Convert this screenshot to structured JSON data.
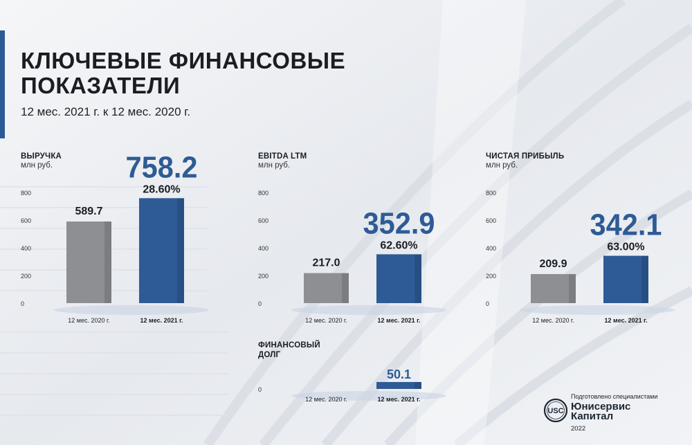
{
  "header": {
    "title_line1": "КЛЮЧЕВЫЕ ФИНАНСОВЫЕ",
    "title_line2": "ПОКАЗАТЕЛИ",
    "subtitle": "12 мес. 2021 г. к 12 мес. 2020 г."
  },
  "colors": {
    "accent": "#2c5a94",
    "bar_prev": "#8e8f92",
    "bar_curr": "#2e5b96",
    "highlight": "#2e5b96"
  },
  "chart_data": [
    {
      "type": "bar",
      "title": "ВЫРУЧКА",
      "unit": "млн руб.",
      "categories": [
        "12 мес. 2020 г.",
        "12 мес. 2021 г."
      ],
      "values": [
        589.7,
        758.2
      ],
      "value_labels": [
        "589.7",
        "758.2"
      ],
      "growth": "28.60%",
      "y_ticks": [
        "0",
        "200",
        "400",
        "600",
        "800"
      ],
      "ylim": [
        0,
        800
      ]
    },
    {
      "type": "bar",
      "title": "EBITDA LTM",
      "unit": "млн руб.",
      "categories": [
        "12 мес. 2020 г.",
        "12 мес. 2021 г."
      ],
      "values": [
        217.0,
        352.9
      ],
      "value_labels": [
        "217.0",
        "352.9"
      ],
      "growth": "62.60%",
      "y_ticks": [
        "0",
        "200",
        "400",
        "600",
        "800"
      ],
      "ylim": [
        0,
        800
      ]
    },
    {
      "type": "bar",
      "title": "ЧИСТАЯ ПРИБЫЛЬ",
      "unit": "млн руб.",
      "categories": [
        "12 мес. 2020 г.",
        "12 мес. 2021 г."
      ],
      "values": [
        209.9,
        342.1
      ],
      "value_labels": [
        "209.9",
        "342.1"
      ],
      "growth": "63.00%",
      "y_ticks": [
        "0",
        "200",
        "400",
        "600",
        "800"
      ],
      "ylim": [
        0,
        800
      ]
    },
    {
      "type": "bar",
      "title": "ФИНАНСОВЫЙ ДОЛГ",
      "title_line1": "ФИНАНСОВЫЙ",
      "title_line2": "ДОЛГ",
      "categories": [
        "12 мес. 2020 г.",
        "12 мес. 2021 г."
      ],
      "values": [
        null,
        50.1
      ],
      "value_labels": [
        "",
        "50.1"
      ],
      "y_ticks": [
        "0"
      ]
    }
  ],
  "footer": {
    "prepared_by": "Подготовлено специалистами",
    "company_line1": "Юнисервис",
    "company_line2": "Капитал",
    "year": "2022",
    "logo_text": "USC"
  }
}
